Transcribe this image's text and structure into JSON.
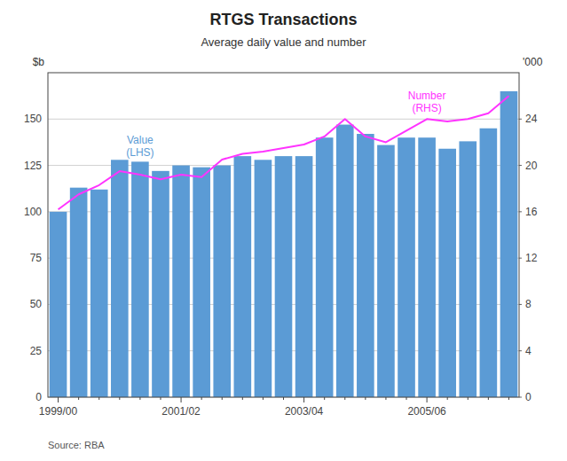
{
  "chart_data": {
    "type": "bar",
    "title": "RTGS Transactions",
    "subtitle": "Average daily value and number",
    "annotations": [
      "Source: RBA"
    ],
    "ylabel": "$b",
    "y2label": "'000",
    "categories": [
      "1999/00",
      null,
      null,
      null,
      null,
      null,
      "2001/02",
      null,
      null,
      null,
      null,
      null,
      "2003/04",
      null,
      null,
      null,
      null,
      null,
      "2005/06",
      null,
      null,
      null,
      null
    ],
    "series": [
      {
        "name": "Value\n(LHS)",
        "type": "bar",
        "color": "#5B9BD5",
        "values": [
          100,
          113,
          112,
          128,
          127,
          122,
          125,
          124,
          125,
          130,
          128,
          130,
          130,
          140,
          147,
          142,
          136,
          140,
          140,
          134,
          138,
          145,
          165
        ]
      },
      {
        "name": "Number\n(RHS)",
        "type": "line",
        "axis": "y2",
        "color": "#FF33FF",
        "values": [
          16.2,
          17.5,
          18.3,
          19.5,
          19.2,
          18.8,
          19.2,
          19.0,
          20.5,
          21.0,
          21.2,
          21.5,
          21.8,
          22.5,
          24.0,
          22.5,
          22.0,
          23.0,
          24.0,
          23.8,
          24.0,
          24.5,
          26.0
        ]
      }
    ],
    "ylim": [
      0,
      175
    ],
    "yticks": [
      0,
      25,
      50,
      75,
      100,
      125,
      150
    ],
    "y2lim": [
      0,
      28
    ],
    "y2ticks": [
      0,
      4,
      8,
      12,
      16,
      20,
      24
    ],
    "grid": true
  }
}
